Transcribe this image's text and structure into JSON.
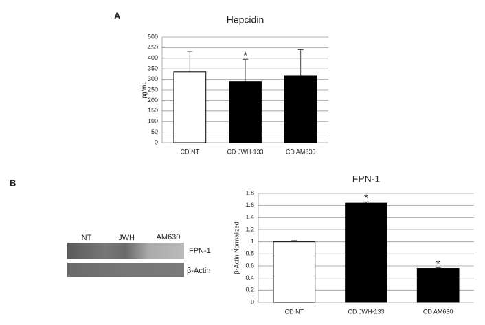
{
  "panels": [
    "A",
    "B"
  ],
  "blot": {
    "lanes": [
      "NT",
      "JWH",
      "AM630"
    ],
    "bands": [
      "FPN-1",
      "β-Actin"
    ]
  },
  "chart_data": [
    {
      "type": "bar",
      "title": "Hepcidin",
      "y_label": "pg/mL",
      "categories": [
        "CD NT",
        "CD JWH-133",
        "CD AM630"
      ],
      "values": [
        335,
        290,
        315
      ],
      "errors": [
        97,
        105,
        125
      ],
      "colors": [
        "#ffffff",
        "#000000",
        "#000000"
      ],
      "significance": [
        null,
        "*",
        null
      ],
      "ylim": [
        0,
        500
      ],
      "yticks": [
        0,
        50,
        100,
        150,
        200,
        250,
        300,
        350,
        400,
        450,
        500
      ],
      "grid": true
    },
    {
      "type": "bar",
      "title": "FPN-1",
      "y_label": "β-Actin Normalized",
      "categories": [
        "CD NT",
        "CD JWH-133",
        "CD AM630"
      ],
      "values": [
        1.0,
        1.64,
        0.56
      ],
      "errors": [
        0.02,
        0.02,
        0.01
      ],
      "colors": [
        "#ffffff",
        "#000000",
        "#000000"
      ],
      "significance": [
        null,
        "*",
        "*"
      ],
      "ylim": [
        0,
        1.8
      ],
      "yticks": [
        0,
        0.2,
        0.4,
        0.6,
        0.8,
        1,
        1.2,
        1.4,
        1.6,
        1.8
      ],
      "grid": true
    }
  ]
}
